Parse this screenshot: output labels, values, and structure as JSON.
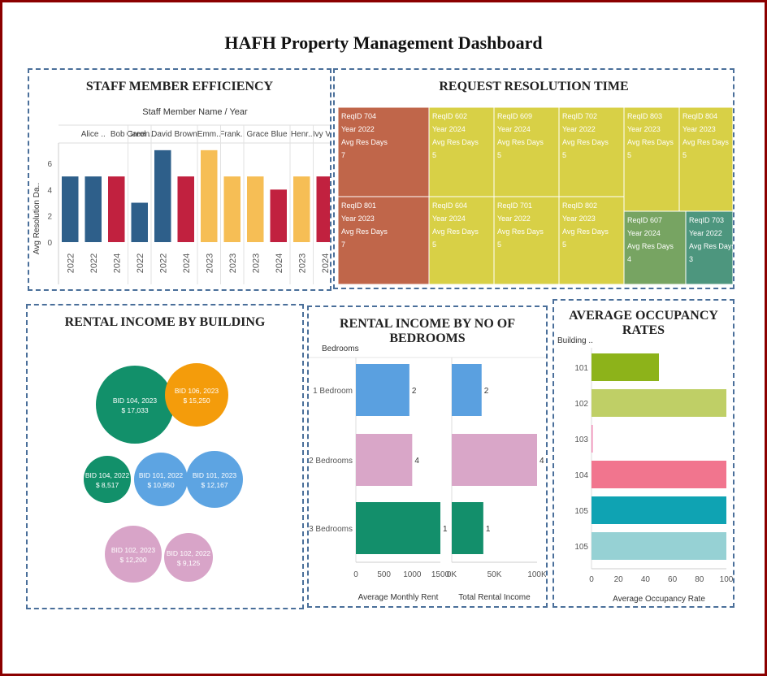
{
  "title": "HAFH Property Management Dashboard",
  "staff_panel_title": "STAFF MEMBER EFFICIENCY",
  "treemap_panel_title": "REQUEST RESOLUTION TIME",
  "bubble_panel_title": "RENTAL INCOME BY BUILDING",
  "bedrooms_panel_title": "RENTAL INCOME BY NO OF BEDROOMS",
  "occupancy_panel_title": "AVERAGE OCCUPANCY RATES",
  "chart_data": [
    {
      "id": "staff_efficiency",
      "type": "bar",
      "header": "Staff Member Name  /  Year",
      "ylabel": "Avg Resolution Da..",
      "ylim": [
        0,
        7.3
      ],
      "yticks": [
        0,
        2,
        4,
        6
      ],
      "groups": [
        {
          "label": "Alice ..",
          "years": [
            "2022",
            "2022",
            "2024"
          ],
          "values": [
            5,
            5,
            5
          ],
          "colors": [
            "#2e5f8a",
            "#2e5f8a",
            "#c1213f"
          ]
        },
        {
          "label": "Bob Green",
          "years": [],
          "values": [],
          "colors": []
        },
        {
          "label": "Carol ..",
          "years": [
            "2022"
          ],
          "values": [
            3
          ],
          "colors": [
            "#2e5f8a"
          ]
        },
        {
          "label": "David Brown",
          "years": [
            "2022",
            "2024"
          ],
          "values": [
            7,
            5
          ],
          "colors": [
            "#2e5f8a",
            "#c1213f"
          ]
        },
        {
          "label": "Emm..",
          "years": [
            "2023"
          ],
          "values": [
            7
          ],
          "colors": [
            "#f6be55"
          ]
        },
        {
          "label": "Frank..",
          "years": [
            "2023"
          ],
          "values": [
            5
          ],
          "colors": [
            "#f6be55"
          ]
        },
        {
          "label": "Grace Blue",
          "years": [
            "2023",
            "2024"
          ],
          "values": [
            5,
            4
          ],
          "colors": [
            "#f6be55",
            "#c1213f"
          ]
        },
        {
          "label": "Henr..",
          "years": [
            "2023"
          ],
          "values": [
            5
          ],
          "colors": [
            "#f6be55"
          ]
        },
        {
          "label": "Ivy Vi..",
          "years": [
            "2024"
          ],
          "values": [
            5
          ],
          "colors": [
            "#c1213f"
          ]
        }
      ]
    },
    {
      "id": "request_resolution",
      "type": "treemap",
      "line_labels": {
        "year": "Year",
        "avg": "Avg Res Days"
      },
      "cells": [
        {
          "req": "ReqID 704",
          "year": "2022",
          "days": "7",
          "color": "#c0664a"
        },
        {
          "req": "ReqID 801",
          "year": "2023",
          "days": "7",
          "color": "#c0664a"
        },
        {
          "req": "ReqID 602",
          "year": "2024",
          "days": "5",
          "color": "#d8d046"
        },
        {
          "req": "ReqID 609",
          "year": "2024",
          "days": "5",
          "color": "#d8d046"
        },
        {
          "req": "ReqID 702",
          "year": "2022",
          "days": "5",
          "color": "#d8d046"
        },
        {
          "req": "ReqID 803",
          "year": "2023",
          "days": "5",
          "color": "#d8d046"
        },
        {
          "req": "ReqID 804",
          "year": "2023",
          "days": "5",
          "color": "#d8d046"
        },
        {
          "req": "ReqID 604",
          "year": "2024",
          "days": "5",
          "color": "#d8d046"
        },
        {
          "req": "ReqID 701",
          "year": "2022",
          "days": "5",
          "color": "#d8d046"
        },
        {
          "req": "ReqID 802",
          "year": "2023",
          "days": "5",
          "color": "#d8d046"
        },
        {
          "req": "ReqID 607",
          "year": "2024",
          "days": "4",
          "color": "#77a462"
        },
        {
          "req": "ReqID 703",
          "year": "2022",
          "days": "3",
          "color": "#4d967e"
        }
      ]
    },
    {
      "id": "rental_by_building",
      "type": "bubble",
      "bubbles": [
        {
          "label": "BID 104, 2023",
          "value": "$ 17,033",
          "color": "#12906a"
        },
        {
          "label": "BID 106, 2023",
          "value": "$ 15,250",
          "color": "#f49c0b"
        },
        {
          "label": "BID 104, 2022",
          "value": "$ 8,517",
          "color": "#12906a"
        },
        {
          "label": "BID 101, 2022",
          "value": "$ 10,950",
          "color": "#5da4e2"
        },
        {
          "label": "BID 101, 2023",
          "value": "$ 12,167",
          "color": "#5da4e2"
        },
        {
          "label": "BID 102, 2023",
          "value": "$ 12,200",
          "color": "#d8a4c8"
        },
        {
          "label": "BID 102, 2022",
          "value": "$ 9,125",
          "color": "#d8a4c8"
        }
      ]
    },
    {
      "id": "rental_by_bedrooms",
      "type": "bar",
      "orientation": "horizontal",
      "row_header": "Bedrooms",
      "categories": [
        "1 Bedroom",
        "2 Bedrooms",
        "3 Bedrooms"
      ],
      "colors": [
        "#5aa0e0",
        "#d9a6c8",
        "#138f6b"
      ],
      "series": [
        {
          "name": "Average Monthly Rent",
          "values": [
            950,
            1000,
            1500
          ],
          "labels": [
            "2",
            "4",
            "1"
          ],
          "xlim": [
            0,
            1500
          ],
          "ticks": [
            "0",
            "500",
            "1000",
            "1500"
          ]
        },
        {
          "name": "Total Rental Income",
          "values": [
            35000,
            100000,
            37000
          ],
          "labels": [
            "2",
            "4",
            "1"
          ],
          "xlim": [
            0,
            100000
          ],
          "ticks": [
            "0K",
            "50K",
            "100K"
          ]
        }
      ]
    },
    {
      "id": "occupancy",
      "type": "bar",
      "orientation": "horizontal",
      "row_header": "Building ..",
      "categories": [
        "101",
        "102",
        "103",
        "104",
        "105",
        "105"
      ],
      "values": [
        50,
        100,
        0.5,
        100,
        100,
        100
      ],
      "colors": [
        "#8db31a",
        "#bfcf66",
        "#f08ab4",
        "#f1758e",
        "#0fa3b3",
        "#96d1d4"
      ],
      "xlabel": "Average Occupancy Rate",
      "xlim": [
        0,
        100
      ],
      "xticks": [
        "0",
        "20",
        "40",
        "60",
        "80",
        "100"
      ]
    }
  ]
}
